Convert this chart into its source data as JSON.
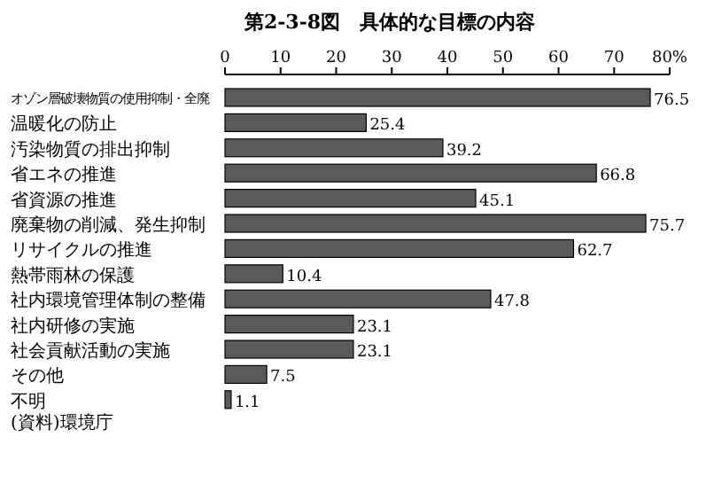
{
  "chart_data": {
    "type": "bar",
    "orientation": "horizontal",
    "title": "第2-3-8図　具体的な目標の内容",
    "categories": [
      "オゾン層破壊物質の使用抑制・全廃",
      "温暖化の防止",
      "汚染物質の排出抑制",
      "省エネの推進",
      "省資源の推進",
      "廃棄物の削減、発生抑制",
      "リサイクルの推進",
      "熱帯雨林の保護",
      "社内環境管理体制の整備",
      "社内研修の実施",
      "社会貢献活動の実施",
      "その他",
      "不明"
    ],
    "values": [
      76.5,
      25.4,
      39.2,
      66.8,
      45.1,
      75.7,
      62.7,
      10.4,
      47.8,
      23.1,
      23.1,
      7.5,
      1.1
    ],
    "color": "#5a5a5a",
    "xlim": [
      0,
      80
    ],
    "xticks": [
      0,
      10,
      20,
      30,
      40,
      50,
      60,
      70,
      {
        "value": 80,
        "label": "80%"
      }
    ],
    "data_labels": true,
    "annotations": [
      "(資料)環境庁"
    ]
  }
}
